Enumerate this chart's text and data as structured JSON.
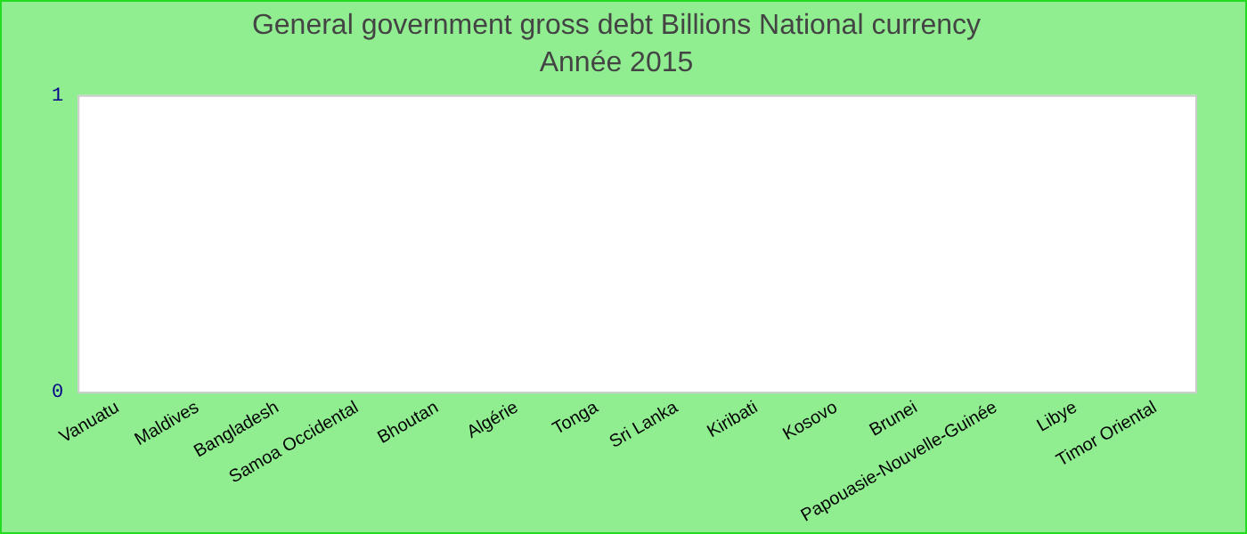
{
  "chart_data": {
    "type": "bar",
    "title": "General government gross debt Billions National currency",
    "subtitle": "Année 2015",
    "categories": [
      "Vanuatu",
      "Maldives",
      "Bangladesh",
      "Samoa Occidental",
      "Bhoutan",
      "Algérie",
      "Tonga",
      "Sri Lanka",
      "Kiribati",
      "Kosovo",
      "Brunei",
      "Papouasie-Nouvelle-Guinée",
      "Libye",
      "Timor Oriental"
    ],
    "values": [
      0,
      0,
      0,
      0,
      0,
      0,
      0,
      0,
      0,
      0,
      0,
      0,
      0,
      0
    ],
    "ylim": [
      0,
      1
    ],
    "yticks": [
      0,
      1
    ],
    "grid": false,
    "legend": false
  }
}
